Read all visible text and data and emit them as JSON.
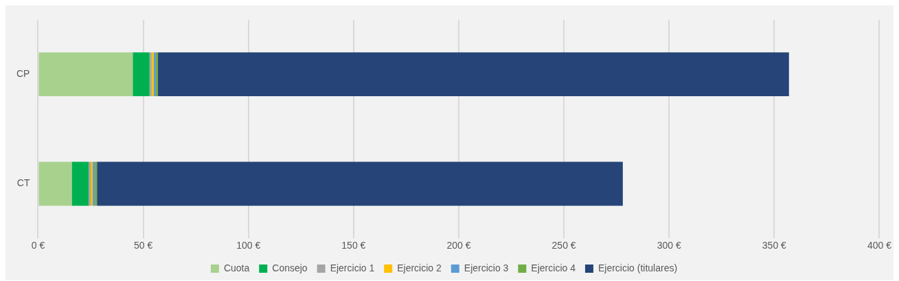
{
  "chart_data": {
    "type": "bar",
    "orientation": "horizontal",
    "stacked": true,
    "categories": [
      "CP",
      "CT"
    ],
    "series": [
      {
        "name": "Cuota",
        "color": "#a9d18e",
        "values": [
          45,
          16
        ]
      },
      {
        "name": "Consejo",
        "color": "#00b050",
        "values": [
          8,
          8
        ]
      },
      {
        "name": "Ejercicio 1",
        "color": "#a5a5a5",
        "values": [
          1,
          1
        ]
      },
      {
        "name": "Ejercicio 2",
        "color": "#ffc000",
        "values": [
          1,
          1
        ]
      },
      {
        "name": "Ejercicio 3",
        "color": "#5b9bd5",
        "values": [
          1,
          1
        ]
      },
      {
        "name": "Ejercicio 4",
        "color": "#70ad47",
        "values": [
          1,
          1
        ]
      },
      {
        "name": "Ejercicio (titulares)",
        "color": "#264478",
        "values": [
          300,
          250
        ]
      }
    ],
    "xlim": [
      0,
      400
    ],
    "xticks": [
      {
        "value": 0,
        "label": "0 €"
      },
      {
        "value": 50,
        "label": "50 €"
      },
      {
        "value": 100,
        "label": "100 €"
      },
      {
        "value": 150,
        "label": "150 €"
      },
      {
        "value": 200,
        "label": "200 €"
      },
      {
        "value": 250,
        "label": "250 €"
      },
      {
        "value": 300,
        "label": "300 €"
      },
      {
        "value": 350,
        "label": "350 €"
      },
      {
        "value": 400,
        "label": "400 €"
      }
    ],
    "grid": "x",
    "legend": "bottom"
  }
}
